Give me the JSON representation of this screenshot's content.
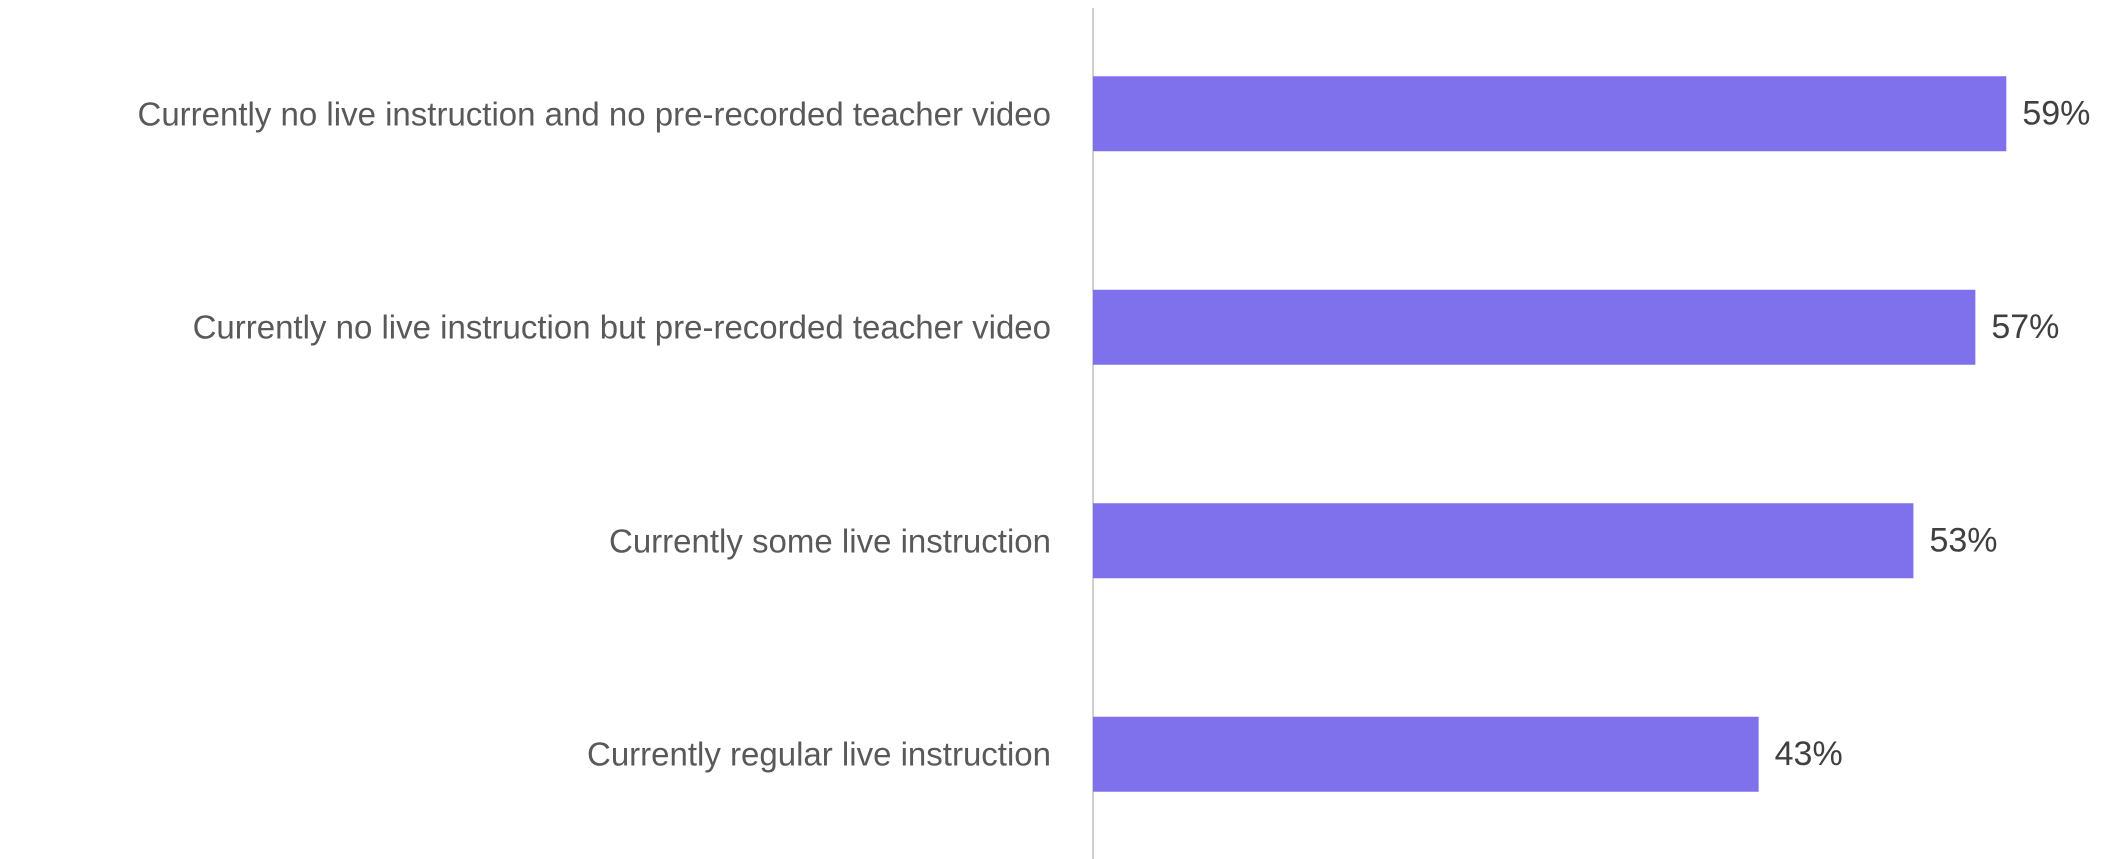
{
  "chart_data": {
    "type": "bar",
    "orientation": "horizontal",
    "categories": [
      "Currently no live instruction and no pre-recorded teacher video",
      "Currently no live instruction but pre-recorded teacher video",
      "Currently some live instruction",
      "Currently regular live instruction"
    ],
    "values": [
      59,
      57,
      53,
      43
    ],
    "value_labels": [
      "59%",
      "57%",
      "53%",
      "43%"
    ],
    "color": "#7f70ec"
  }
}
